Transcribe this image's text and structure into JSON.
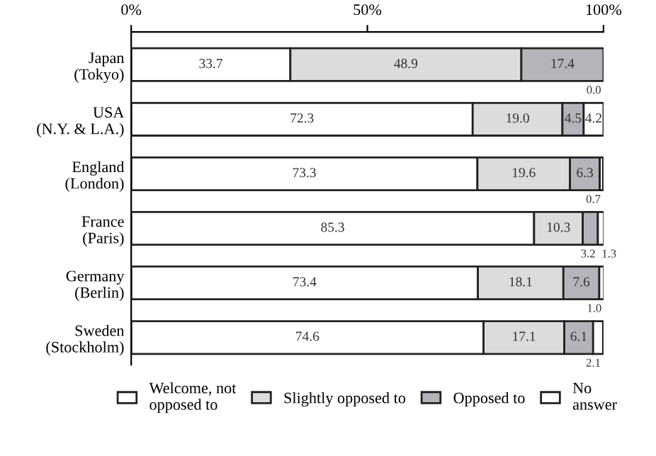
{
  "chart_data": {
    "type": "bar",
    "orientation": "horizontal",
    "stacked": true,
    "categories": [
      "Japan\n(Tokyo)",
      "USA\n(N.Y. & L.A.)",
      "England\n(London)",
      "France\n(Paris)",
      "Germany\n(Berlin)",
      "Sweden\n(Stockholm)"
    ],
    "series": [
      {
        "name": "Welcome, not\nopposed to",
        "color": "#ffffff",
        "values": [
          33.7,
          72.3,
          73.3,
          85.3,
          73.4,
          74.6
        ],
        "value_labels": [
          "33.7",
          "72.3",
          "73.3",
          "85.3",
          "73.4",
          "74.6"
        ]
      },
      {
        "name": "Slightly opposed to",
        "color": "#dcdcdc",
        "values": [
          48.9,
          19.0,
          19.6,
          10.3,
          18.1,
          17.1
        ],
        "value_labels": [
          "48.9",
          "19.0",
          "19.6",
          "10.3",
          "18.1",
          "17.1"
        ]
      },
      {
        "name": "Opposed to",
        "color": "#b4b4bb",
        "values": [
          17.4,
          4.5,
          6.3,
          3.2,
          7.6,
          6.1
        ],
        "value_labels": [
          "17.4",
          "4.5",
          "6.3",
          "3.2",
          "7.6",
          "6.1"
        ]
      },
      {
        "name": "No\nanswer",
        "color": "#ffffff",
        "values": [
          0.0,
          4.2,
          0.7,
          1.3,
          1.0,
          2.1
        ],
        "value_labels": [
          "0.0",
          "4.2",
          "0.7",
          "1.3",
          "1.0",
          "2.1"
        ]
      }
    ],
    "xlim": [
      0,
      100
    ],
    "xticks": [
      {
        "value": 0,
        "label": "0%"
      },
      {
        "value": 50,
        "label": "50%"
      },
      {
        "value": 100,
        "label": "100%"
      }
    ],
    "legend": "bottom",
    "grid": false
  }
}
